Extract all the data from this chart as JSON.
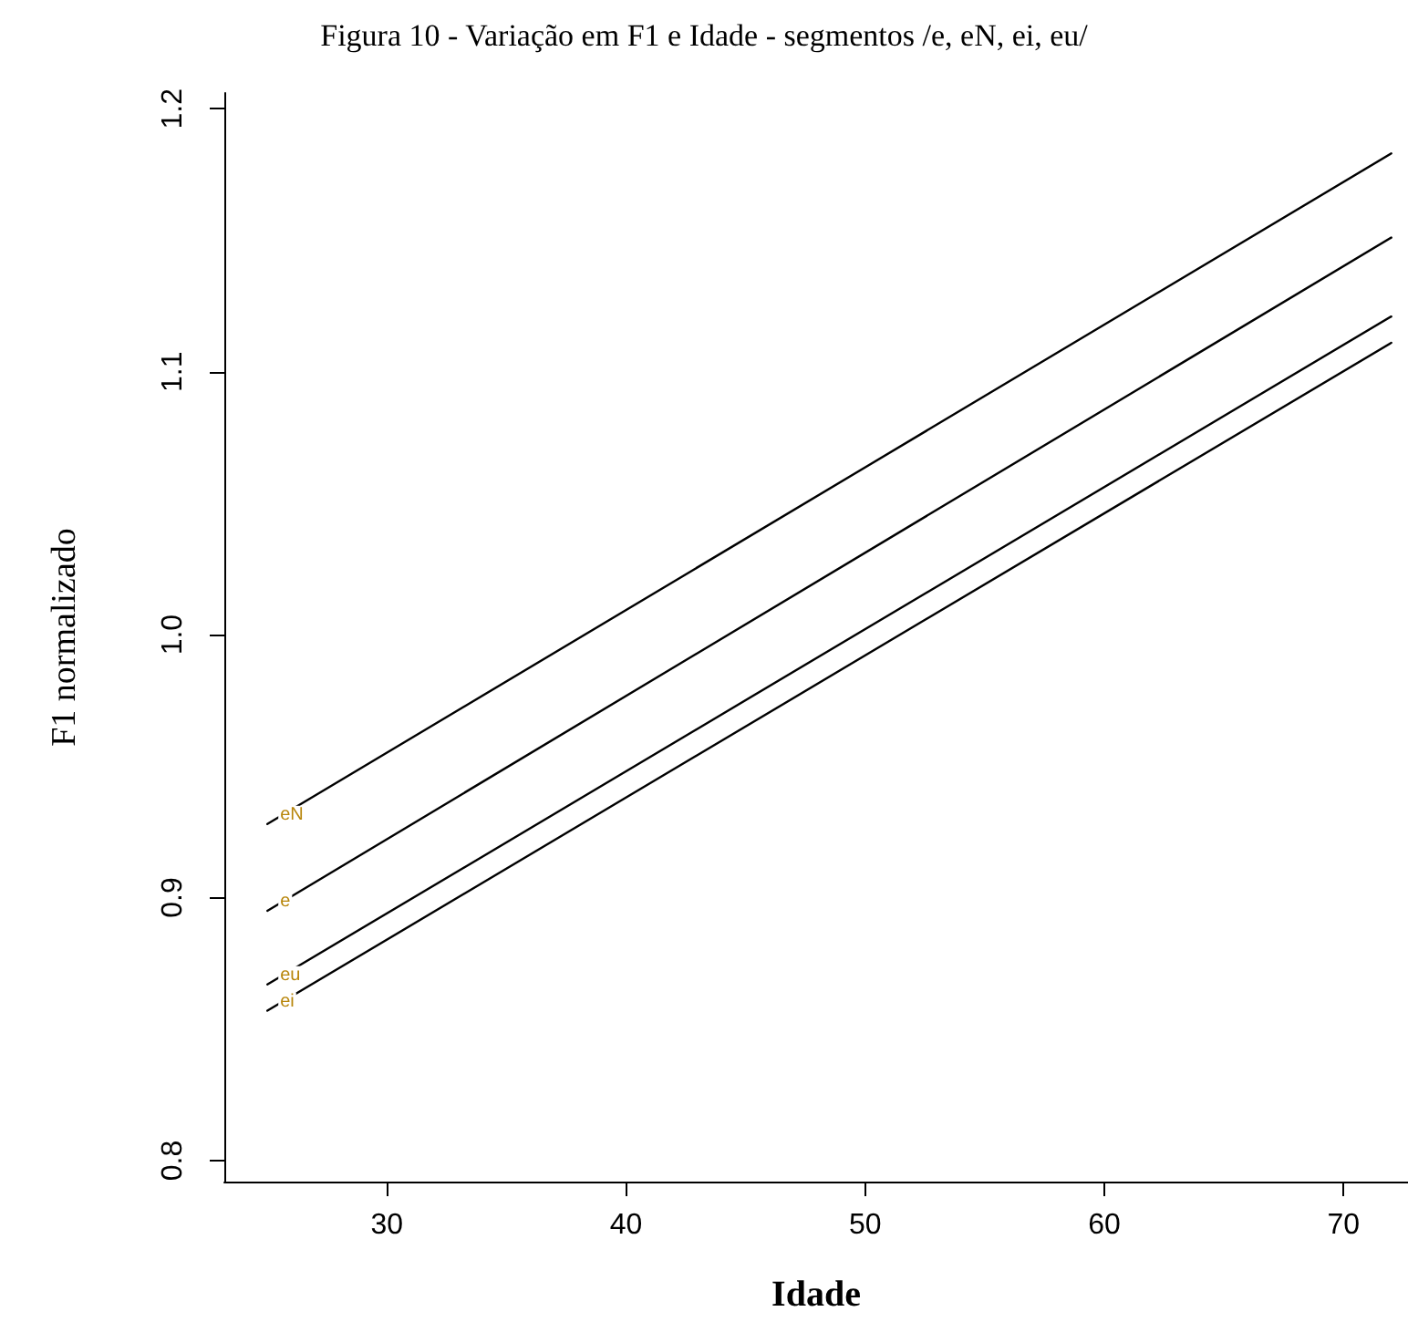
{
  "chart_data": {
    "type": "line",
    "title": "Figura 10 - Variação em F1 e Idade - segmentos /e, eN, ei, eu/",
    "xlabel": "Idade",
    "ylabel": "F1 normalizado",
    "x": [
      25,
      72
    ],
    "series": [
      {
        "name": "eN",
        "color": "#000000",
        "values": [
          0.928,
          1.183
        ]
      },
      {
        "name": "e",
        "color": "#000000",
        "values": [
          0.895,
          1.151
        ]
      },
      {
        "name": "eu",
        "color": "#000000",
        "values": [
          0.867,
          1.121
        ]
      },
      {
        "name": "ei",
        "color": "#000000",
        "values": [
          0.857,
          1.111
        ]
      }
    ],
    "xlim": [
      23.2,
      72.7
    ],
    "xticks": [
      30,
      40,
      50,
      60,
      70
    ],
    "ylim": [
      0.792,
      1.206
    ],
    "yticks": [
      0.8,
      0.9,
      {
        "value": 1,
        "label": "1.0"
      },
      1.1,
      1.2
    ],
    "grid": false,
    "legend": false,
    "marker": "none",
    "line_style": "solid"
  }
}
